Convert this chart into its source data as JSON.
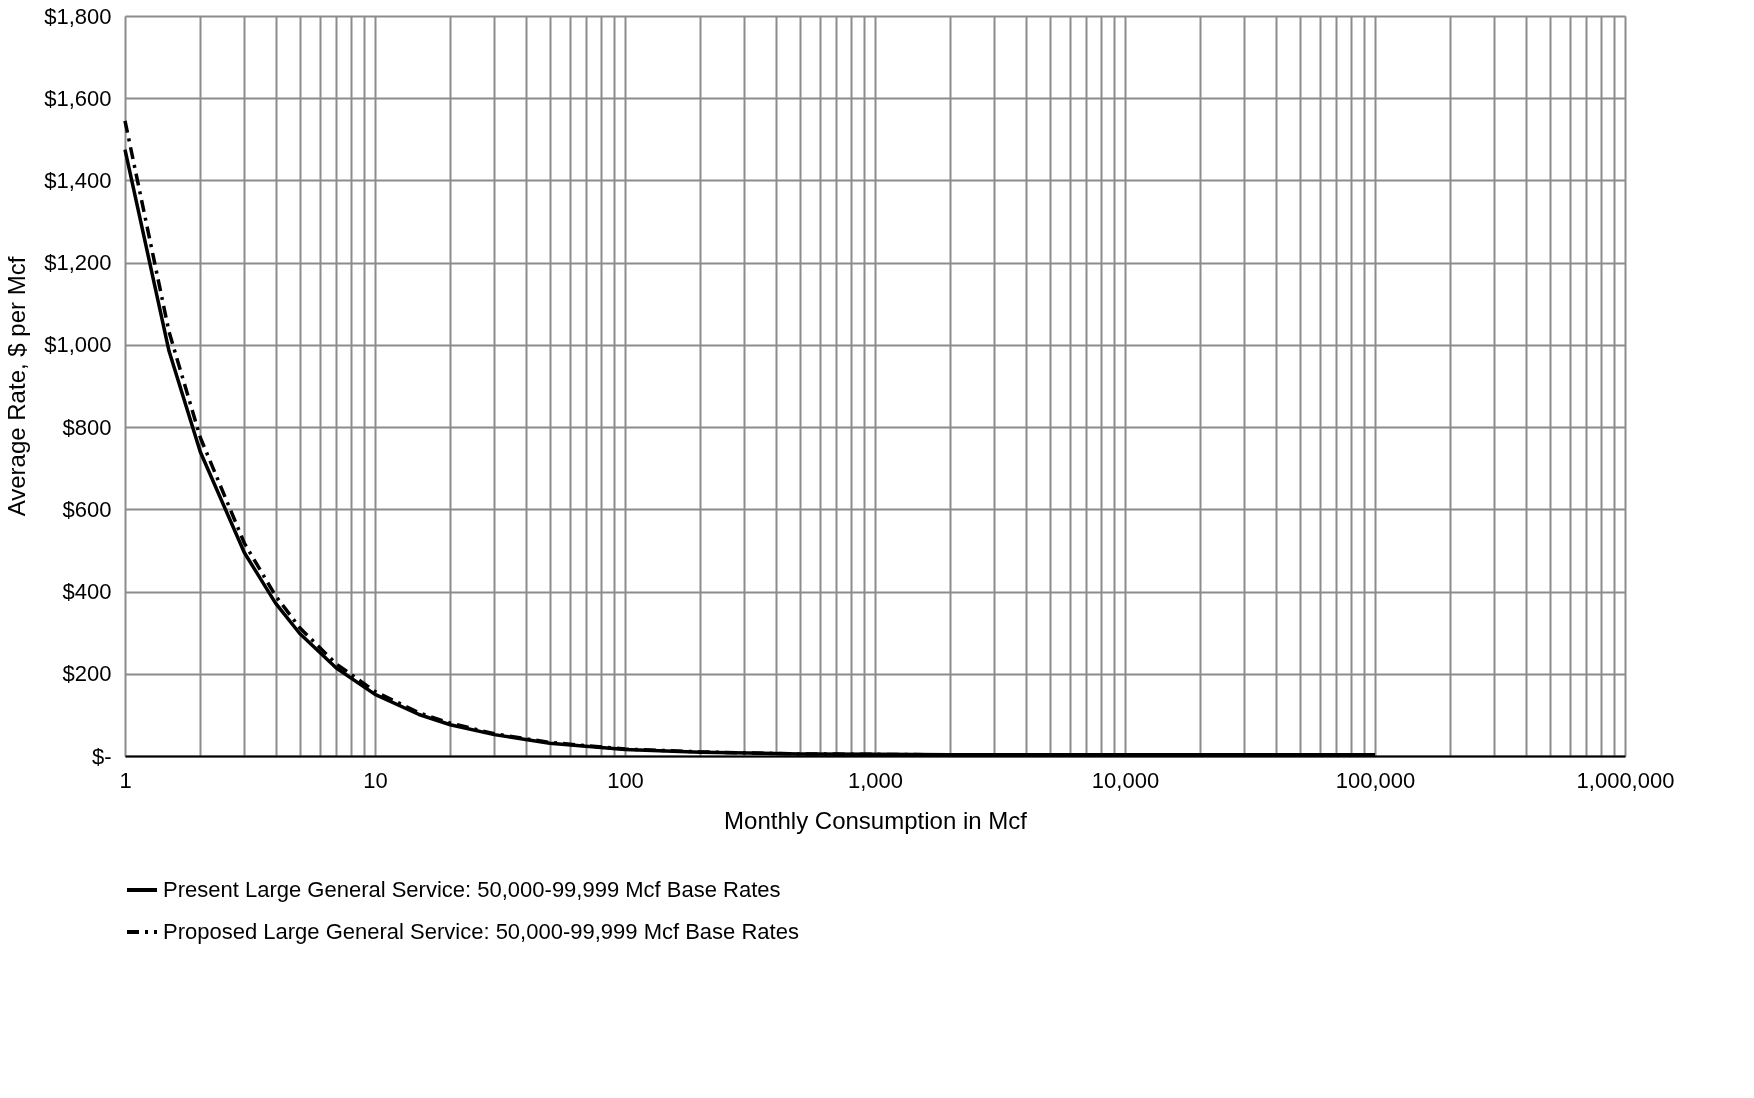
{
  "chart_data": {
    "type": "line",
    "xlabel": "Monthly Consumption in Mcf",
    "ylabel": "Average Rate, $ per Mcf",
    "x": [
      1,
      1.5,
      2,
      3,
      4,
      5,
      7,
      10,
      15,
      20,
      30,
      50,
      100,
      200,
      500,
      1000,
      2000,
      5000,
      10000,
      20000,
      50000,
      100000
    ],
    "series": [
      {
        "name": "Present Large General Service: 50,000-99,999 Mcf Base Rates",
        "color": "#000000",
        "line_style": "solid",
        "values": [
          1475,
          985,
          740,
          495,
          372,
          298,
          214,
          150,
          101,
          76,
          52,
          31,
          16,
          9,
          5,
          4,
          3,
          3,
          3,
          3,
          3,
          3
        ]
      },
      {
        "name": "Proposed Large General Service: 50,000-99,999 Mcf Base Rates",
        "color": "#000000",
        "line_style": "dashed",
        "values": [
          1545,
          1032,
          775,
          518,
          390,
          312,
          224,
          157,
          105,
          80,
          54,
          33,
          17,
          10,
          5,
          4,
          3,
          3,
          3,
          3,
          3,
          3
        ]
      }
    ],
    "log": "x",
    "xlim": [
      1,
      1000000
    ],
    "xticks": [
      1,
      {
        "value": 2,
        "label": null
      },
      {
        "value": 3,
        "label": null
      },
      {
        "value": 4,
        "label": null
      },
      {
        "value": 5,
        "label": null
      },
      {
        "value": 6,
        "label": null
      },
      {
        "value": 7,
        "label": null
      },
      {
        "value": 8,
        "label": null
      },
      {
        "value": 9,
        "label": null
      },
      10,
      {
        "value": 20,
        "label": null
      },
      {
        "value": 30,
        "label": null
      },
      {
        "value": 40,
        "label": null
      },
      {
        "value": 50,
        "label": null
      },
      {
        "value": 60,
        "label": null
      },
      {
        "value": 70,
        "label": null
      },
      {
        "value": 80,
        "label": null
      },
      {
        "value": 90,
        "label": null
      },
      100,
      {
        "value": 200,
        "label": null
      },
      {
        "value": 300,
        "label": null
      },
      {
        "value": 400,
        "label": null
      },
      {
        "value": 500,
        "label": null
      },
      {
        "value": 600,
        "label": null
      },
      {
        "value": 700,
        "label": null
      },
      {
        "value": 800,
        "label": null
      },
      {
        "value": 900,
        "label": null
      },
      {
        "value": 1000,
        "label": "1,000"
      },
      {
        "value": 2000,
        "label": null
      },
      {
        "value": 3000,
        "label": null
      },
      {
        "value": 4000,
        "label": null
      },
      {
        "value": 5000,
        "label": null
      },
      {
        "value": 6000,
        "label": null
      },
      {
        "value": 7000,
        "label": null
      },
      {
        "value": 8000,
        "label": null
      },
      {
        "value": 9000,
        "label": null
      },
      {
        "value": 10000,
        "label": "10,000"
      },
      {
        "value": 20000,
        "label": null
      },
      {
        "value": 30000,
        "label": null
      },
      {
        "value": 40000,
        "label": null
      },
      {
        "value": 50000,
        "label": null
      },
      {
        "value": 60000,
        "label": null
      },
      {
        "value": 70000,
        "label": null
      },
      {
        "value": 80000,
        "label": null
      },
      {
        "value": 90000,
        "label": null
      },
      {
        "value": 100000,
        "label": "100,000"
      },
      {
        "value": 200000,
        "label": null
      },
      {
        "value": 300000,
        "label": null
      },
      {
        "value": 400000,
        "label": null
      },
      {
        "value": 500000,
        "label": null
      },
      {
        "value": 600000,
        "label": null
      },
      {
        "value": 700000,
        "label": null
      },
      {
        "value": 800000,
        "label": null
      },
      {
        "value": 900000,
        "label": null
      },
      {
        "value": 1000000,
        "label": "1,000,000"
      }
    ],
    "ylim": [
      0,
      1800
    ],
    "yticks": [
      {
        "value": 0,
        "label": "$-"
      },
      {
        "value": 200,
        "label": "$200"
      },
      {
        "value": 400,
        "label": "$400"
      },
      {
        "value": 600,
        "label": "$600"
      },
      {
        "value": 800,
        "label": "$800"
      },
      {
        "value": 1000,
        "label": "$1,000"
      },
      {
        "value": 1200,
        "label": "$1,200"
      },
      {
        "value": 1400,
        "label": "$1,400"
      },
      {
        "value": 1600,
        "label": "$1,600"
      },
      {
        "value": 1800,
        "label": "$1,800"
      }
    ],
    "grid": true,
    "legend": "bottom",
    "marker": "none"
  }
}
